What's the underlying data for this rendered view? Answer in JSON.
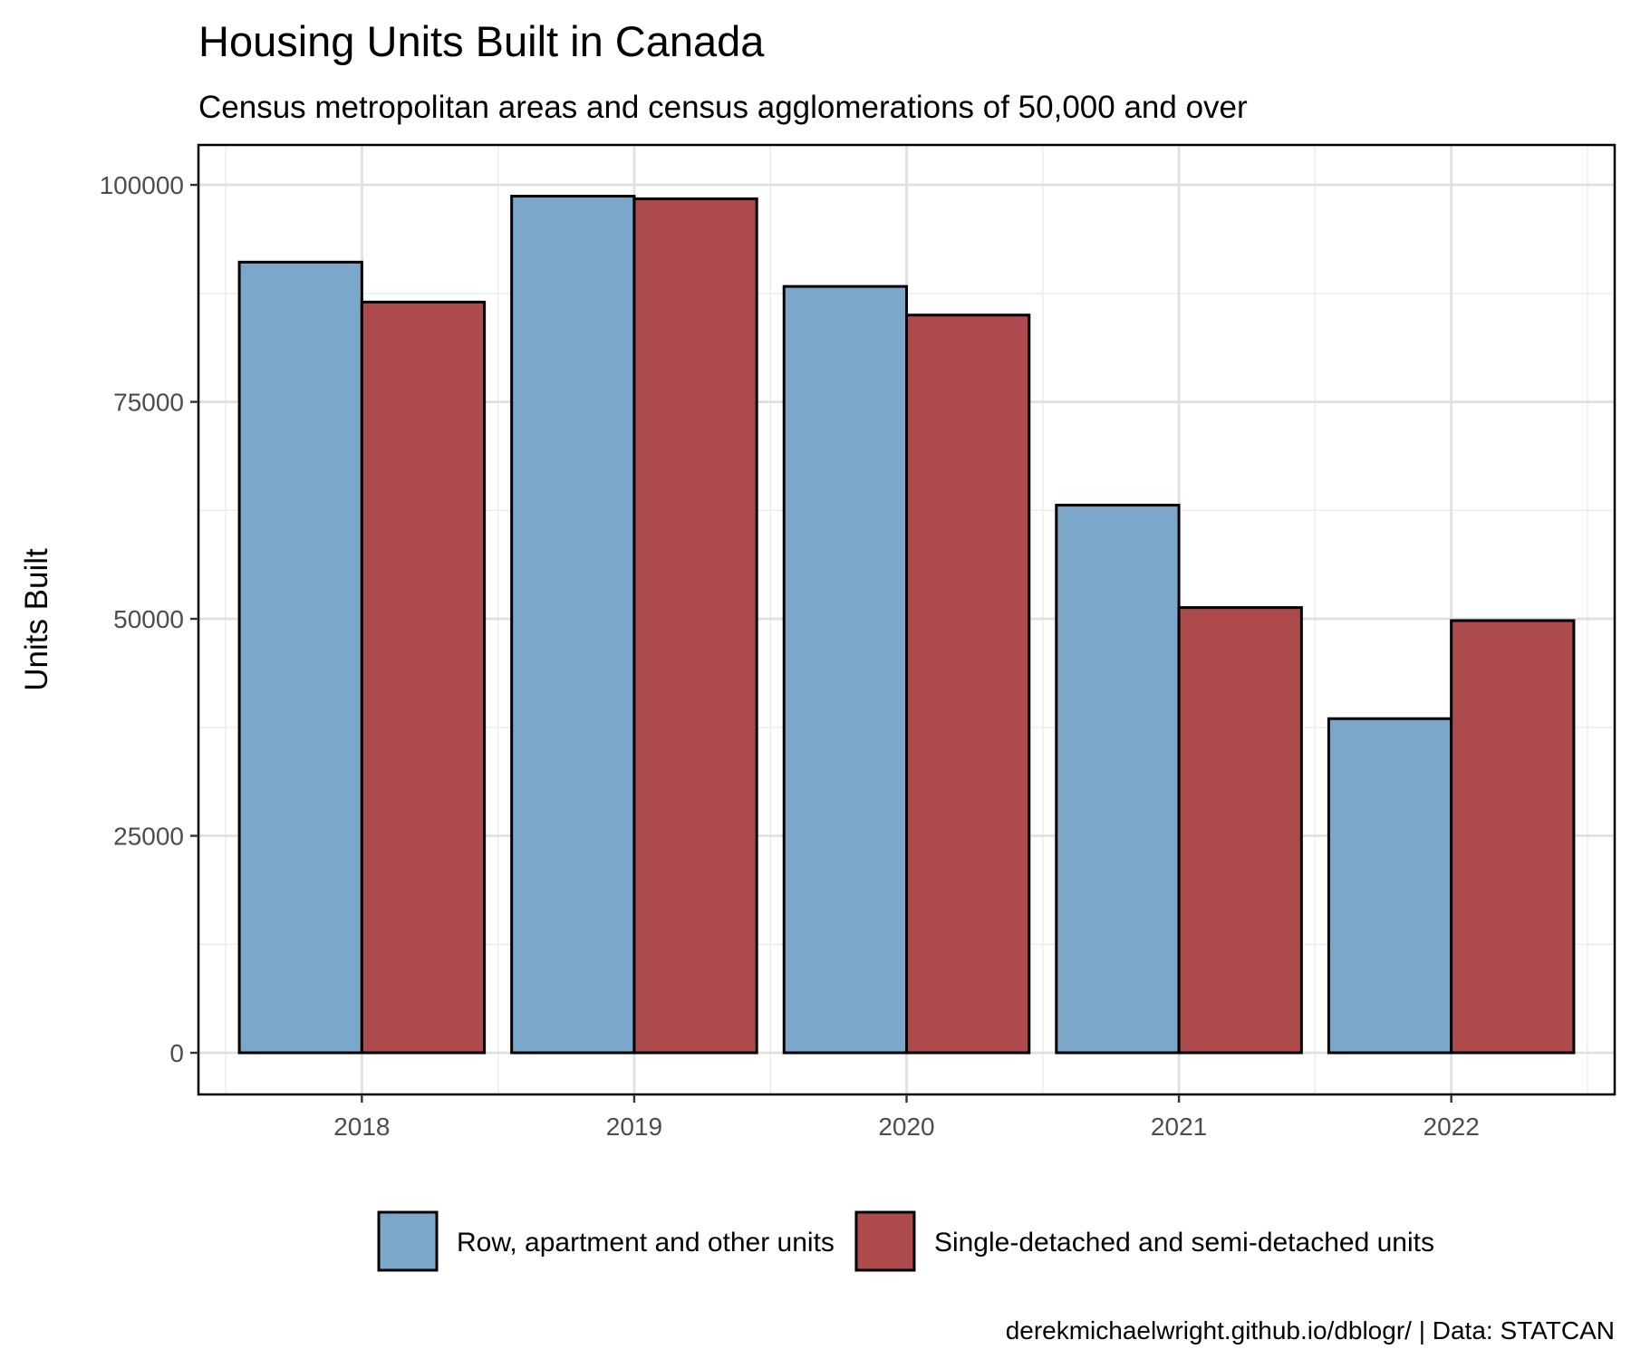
{
  "chart_data": {
    "type": "bar",
    "title": "Housing Units Built in Canada",
    "subtitle": "Census metropolitan areas and census agglomerations of 50,000 and over",
    "xlabel": "",
    "ylabel": "Units Built",
    "caption": "derekmichaelwright.github.io/dblogr/ | Data: STATCAN",
    "categories": [
      "2018",
      "2019",
      "2020",
      "2021",
      "2022"
    ],
    "series": [
      {
        "name": "Row, apartment and other units",
        "color": "#7ba7cb",
        "values": [
          91100,
          98700,
          88300,
          63100,
          38500
        ]
      },
      {
        "name": "Single-detached and semi-detached units",
        "color": "#ac4a4c",
        "values": [
          86500,
          98400,
          85000,
          51300,
          49800
        ]
      }
    ],
    "ylim": [
      -4800,
      104600
    ],
    "yticks": [
      0,
      25000,
      50000,
      75000,
      100000
    ],
    "yticklabels": [
      "0",
      "25000",
      "50000",
      "75000",
      "100000"
    ],
    "grid": true,
    "legend_position": "bottom"
  }
}
